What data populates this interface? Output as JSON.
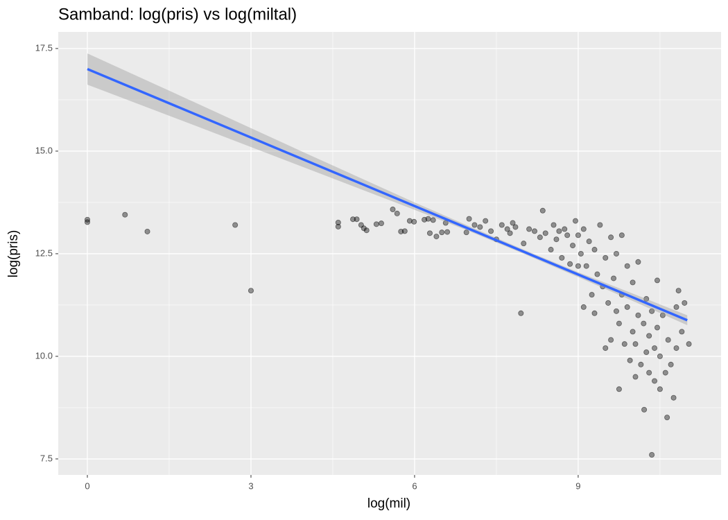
{
  "chart_data": {
    "type": "scatter",
    "title": "Samband: log(pris) vs log(miltal)",
    "x_label": "log(mil)",
    "y_label": "log(pris)",
    "xlim": [
      -0.534,
      11.62
    ],
    "ylim": [
      7.11,
      17.905
    ],
    "xticks": [
      0,
      3,
      6,
      9
    ],
    "yticks": [
      7.5,
      {
        "value": 10,
        "label": "10.0"
      },
      12.5,
      {
        "value": 15,
        "label": "15.0"
      },
      17.5
    ],
    "x_minor_grid": [
      1.5,
      4.5,
      7.5,
      10.5
    ],
    "y_minor_grid": [
      8.75,
      11.25,
      13.75,
      16.25
    ],
    "grid": true,
    "point_color": "#000000",
    "fit_color": "#3366ff",
    "band_color": "#999999",
    "fit": {
      "x": [
        0,
        11
      ],
      "y": [
        17.0,
        10.88
      ]
    },
    "band": {
      "x": [
        0,
        2,
        4,
        6,
        7,
        8,
        9,
        10,
        11
      ],
      "upper": [
        17.38,
        16.17,
        14.95,
        13.75,
        13.17,
        12.6,
        12.05,
        11.53,
        11.0
      ],
      "lower": [
        16.62,
        15.61,
        14.59,
        13.57,
        13.05,
        12.5,
        11.93,
        11.35,
        10.76
      ]
    },
    "x": [
      0,
      0,
      0.69,
      1.1,
      2.71,
      3.0,
      4.6,
      4.6,
      4.87,
      4.94,
      5.02,
      5.07,
      5.12,
      5.3,
      5.39,
      5.6,
      5.68,
      5.75,
      5.82,
      5.91,
      5.99,
      6.18,
      6.25,
      6.28,
      6.34,
      6.4,
      6.5,
      6.57,
      6.6,
      6.95,
      7.0,
      7.1,
      7.2,
      7.3,
      7.4,
      7.5,
      7.6,
      7.7,
      7.75,
      7.8,
      7.85,
      7.95,
      8.0,
      8.1,
      8.2,
      8.3,
      8.35,
      8.4,
      8.5,
      8.55,
      8.6,
      8.7,
      8.75,
      8.8,
      8.85,
      8.9,
      8.95,
      9.0,
      9.05,
      9.1,
      9.1,
      9.15,
      9.2,
      9.25,
      9.3,
      9.3,
      9.35,
      9.4,
      9.45,
      9.5,
      9.5,
      9.55,
      9.6,
      9.6,
      9.65,
      9.7,
      9.7,
      9.75,
      9.75,
      9.8,
      9.8,
      9.85,
      9.9,
      9.9,
      9.95,
      10.0,
      10.0,
      10.05,
      10.05,
      10.1,
      10.1,
      10.15,
      10.2,
      10.21,
      10.25,
      10.25,
      10.3,
      10.3,
      10.35,
      10.35,
      10.4,
      10.4,
      10.45,
      10.45,
      10.5,
      10.5,
      10.55,
      10.6,
      10.63,
      10.65,
      10.7,
      10.75,
      10.8,
      10.84,
      10.9,
      10.95,
      11.03,
      10.8,
      9.0,
      8.65
    ],
    "y": [
      13.33,
      13.27,
      13.45,
      13.04,
      13.2,
      11.6,
      13.26,
      13.16,
      13.34,
      13.34,
      13.2,
      13.12,
      13.07,
      13.22,
      13.24,
      13.58,
      13.48,
      13.04,
      13.05,
      13.3,
      13.28,
      13.33,
      13.35,
      13.0,
      13.32,
      12.92,
      13.02,
      13.25,
      13.03,
      13.02,
      13.35,
      13.2,
      13.15,
      13.3,
      13.05,
      12.85,
      13.2,
      13.1,
      13.0,
      13.25,
      13.15,
      11.05,
      12.75,
      13.1,
      13.05,
      12.9,
      13.55,
      13.0,
      12.6,
      13.2,
      12.85,
      12.4,
      13.1,
      12.95,
      12.25,
      12.7,
      13.3,
      12.95,
      12.5,
      13.1,
      11.2,
      12.2,
      12.8,
      11.5,
      12.6,
      11.05,
      12.0,
      13.2,
      11.7,
      12.4,
      10.2,
      11.3,
      12.9,
      10.4,
      11.9,
      11.1,
      12.5,
      9.2,
      10.8,
      11.5,
      12.95,
      10.3,
      11.2,
      12.2,
      9.9,
      10.6,
      11.8,
      9.5,
      10.3,
      11.0,
      12.3,
      9.8,
      10.8,
      8.7,
      10.1,
      11.4,
      9.6,
      10.5,
      7.6,
      11.1,
      9.4,
      10.2,
      11.85,
      10.7,
      9.2,
      10.0,
      11.0,
      9.6,
      8.51,
      10.4,
      9.8,
      8.99,
      10.2,
      11.6,
      10.6,
      11.3,
      10.3,
      11.2,
      12.2,
      13.05
    ]
  }
}
